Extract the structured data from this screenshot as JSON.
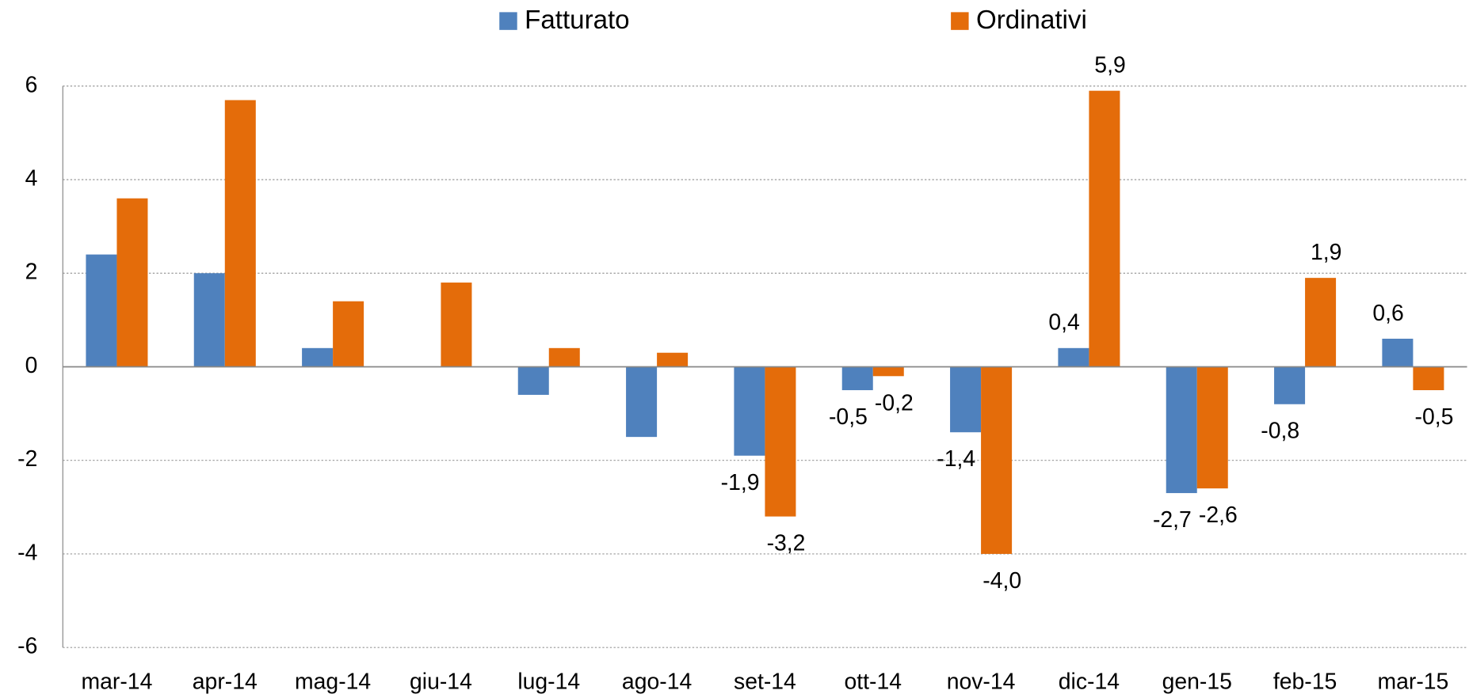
{
  "chart_data": {
    "type": "bar",
    "categories": [
      "mar-14",
      "apr-14",
      "mag-14",
      "giu-14",
      "lug-14",
      "ago-14",
      "set-14",
      "ott-14",
      "nov-14",
      "dic-14",
      "gen-15",
      "feb-15",
      "mar-15"
    ],
    "series": [
      {
        "name": "Fatturato",
        "color": "#4f81bd",
        "values": [
          2.4,
          2.0,
          0.4,
          0,
          -0.6,
          -1.5,
          -1.9,
          -0.5,
          -1.4,
          0.4,
          -2.7,
          -0.8,
          0.6
        ],
        "value_labels": [
          null,
          null,
          null,
          null,
          null,
          null,
          "-1,9",
          "-0,5",
          "-1,4",
          "0,4",
          "-2,7",
          "-0,8",
          "0,6"
        ]
      },
      {
        "name": "Ordinativi",
        "color": "#e46c0a",
        "values": [
          3.6,
          5.7,
          1.4,
          1.8,
          0.4,
          0.3,
          -3.2,
          -0.2,
          -4.0,
          5.9,
          -2.6,
          1.9,
          -0.5
        ],
        "value_labels": [
          null,
          null,
          null,
          null,
          null,
          null,
          "-3,2",
          "-0,2",
          "-4,0",
          "5,9",
          "-2,6",
          "1,9",
          "-0,5"
        ]
      }
    ],
    "ylim": [
      -6,
      6
    ],
    "yticks": [
      -6,
      -4,
      -2,
      0,
      2,
      4,
      6
    ],
    "grid": true,
    "legend": "top"
  }
}
